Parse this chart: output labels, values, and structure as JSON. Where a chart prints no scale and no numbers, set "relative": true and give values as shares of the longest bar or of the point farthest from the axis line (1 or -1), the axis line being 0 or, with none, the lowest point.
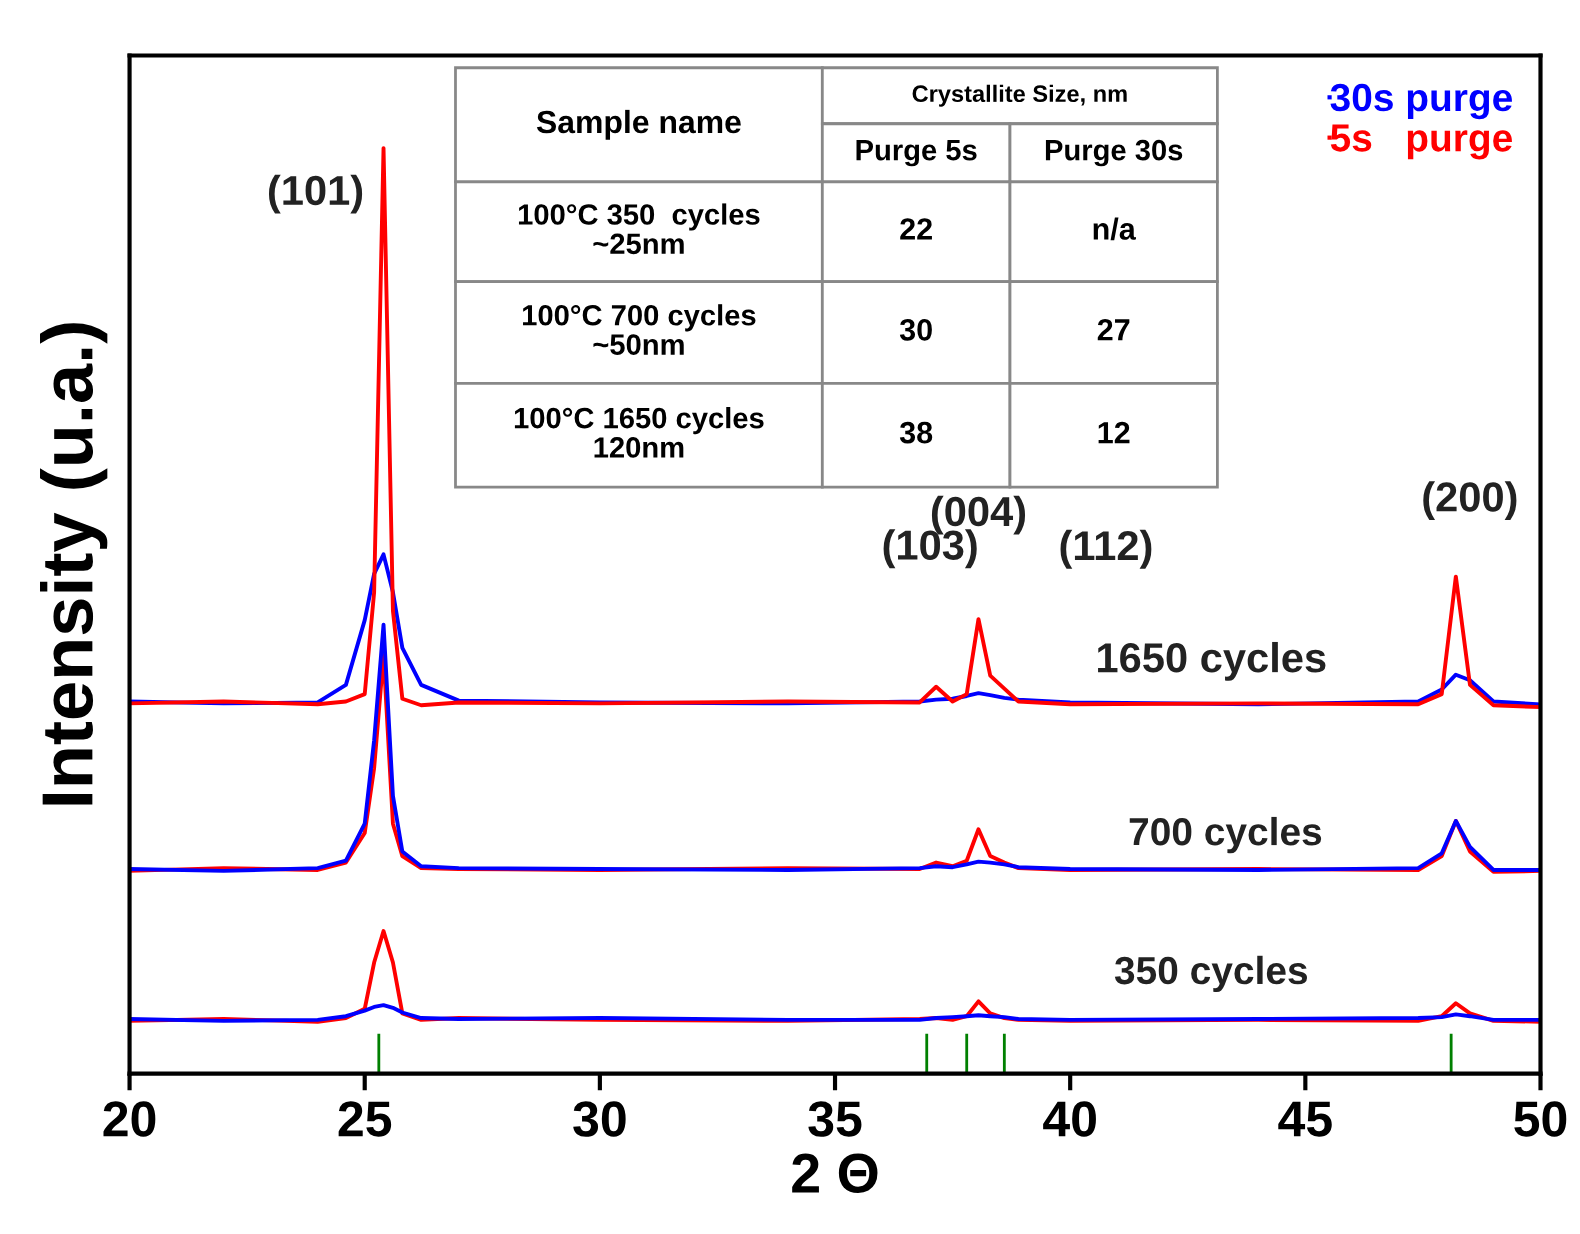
{
  "chart_data": {
    "type": "line",
    "relative": true,
    "xlabel": "2 Θ",
    "ylabel": "Intensity (u.a.)",
    "xlim": [
      20,
      50
    ],
    "xticks": [
      20,
      25,
      30,
      35,
      40,
      45,
      50
    ],
    "tick_labels": "x",
    "grid": false,
    "legend": "top right",
    "marker": "none",
    "line_style": "solid",
    "x": [
      20,
      22,
      24,
      24.6,
      25.0,
      25.2,
      25.4,
      25.6,
      25.8,
      26.2,
      27,
      30,
      34,
      36.8,
      37.15,
      37.5,
      37.8,
      38.05,
      38.3,
      38.6,
      38.9,
      40,
      44,
      47.4,
      47.9,
      48.2,
      48.5,
      49,
      50
    ],
    "series": [
      {
        "name": "30s purge",
        "color": "#0000ff",
        "values": [
          0.402,
          0.4,
          0.401,
          0.42,
          0.49,
          0.54,
          0.561,
          0.52,
          0.46,
          0.42,
          0.403,
          0.401,
          0.4,
          0.402,
          0.404,
          0.405,
          0.408,
          0.411,
          0.409,
          0.406,
          0.404,
          0.401,
          0.399,
          0.402,
          0.415,
          0.431,
          0.425,
          0.402,
          0.399
        ]
      },
      {
        "name": "5s   purge",
        "color": "#ff0000",
        "values": [
          0.4,
          0.402,
          0.399,
          0.402,
          0.41,
          0.52,
          1.0,
          0.5,
          0.405,
          0.398,
          0.401,
          0.4,
          0.402,
          0.401,
          0.418,
          0.402,
          0.41,
          0.491,
          0.43,
          0.416,
          0.402,
          0.399,
          0.4,
          0.399,
          0.41,
          0.537,
          0.42,
          0.398,
          0.396
        ]
      },
      {
        "color": "#ff0000",
        "values": [
          0.219,
          0.222,
          0.22,
          0.228,
          0.26,
          0.33,
          0.452,
          0.27,
          0.235,
          0.222,
          0.221,
          0.22,
          0.222,
          0.221,
          0.228,
          0.224,
          0.23,
          0.264,
          0.235,
          0.228,
          0.222,
          0.22,
          0.221,
          0.22,
          0.235,
          0.273,
          0.24,
          0.218,
          0.219
        ]
      },
      {
        "color": "#0000ff",
        "values": [
          0.221,
          0.219,
          0.222,
          0.23,
          0.27,
          0.36,
          0.485,
          0.3,
          0.24,
          0.224,
          0.222,
          0.221,
          0.22,
          0.222,
          0.224,
          0.223,
          0.226,
          0.229,
          0.228,
          0.226,
          0.223,
          0.221,
          0.22,
          0.222,
          0.238,
          0.273,
          0.245,
          0.22,
          0.22
        ]
      },
      {
        "color": "#ff0000",
        "values": [
          0.057,
          0.059,
          0.056,
          0.06,
          0.07,
          0.12,
          0.154,
          0.12,
          0.065,
          0.058,
          0.06,
          0.058,
          0.057,
          0.059,
          0.06,
          0.058,
          0.062,
          0.078,
          0.065,
          0.06,
          0.058,
          0.057,
          0.058,
          0.057,
          0.062,
          0.076,
          0.065,
          0.057,
          0.056
        ]
      },
      {
        "color": "#0000ff",
        "values": [
          0.059,
          0.057,
          0.058,
          0.062,
          0.068,
          0.072,
          0.074,
          0.071,
          0.066,
          0.06,
          0.059,
          0.06,
          0.058,
          0.058,
          0.06,
          0.061,
          0.062,
          0.063,
          0.062,
          0.061,
          0.059,
          0.058,
          0.059,
          0.06,
          0.061,
          0.064,
          0.062,
          0.058,
          0.058
        ]
      },
      {
        "type": "bar",
        "color": "#008000",
        "x": [
          25.3,
          36.95,
          37.8,
          38.6,
          48.1
        ],
        "values": [
          0.043,
          0.043,
          0.043,
          0.043,
          0.043
        ]
      }
    ],
    "annotations": [
      {
        "text": "(101)",
        "x": 25.4,
        "y": 1.0
      },
      {
        "text": "(103)",
        "x": 37.15,
        "y": 0.418
      },
      {
        "text": "(004)",
        "x": 38.05,
        "y": 0.491
      },
      {
        "text": "(200)",
        "x": 48.2,
        "y": 0.537
      },
      {
        "text": "1650 cycles",
        "x": 43.0,
        "y": 0.4
      },
      {
        "text": "700 cycles",
        "x": 43.3,
        "y": 0.221
      },
      {
        "text": "350 cycles",
        "x": 43.0,
        "y": 0.058
      },
      "Sample name",
      "Crystallite Size, nm",
      "Purge 5s",
      "Purge 30s",
      "100°C 350  cycles\n~25nm",
      "22",
      "n/a",
      "100°C 700 cycles\n~50nm",
      "30",
      "27",
      "100°C 1650 cycles\n120nm",
      "38",
      "12",
      "(112)"
    ]
  }
}
